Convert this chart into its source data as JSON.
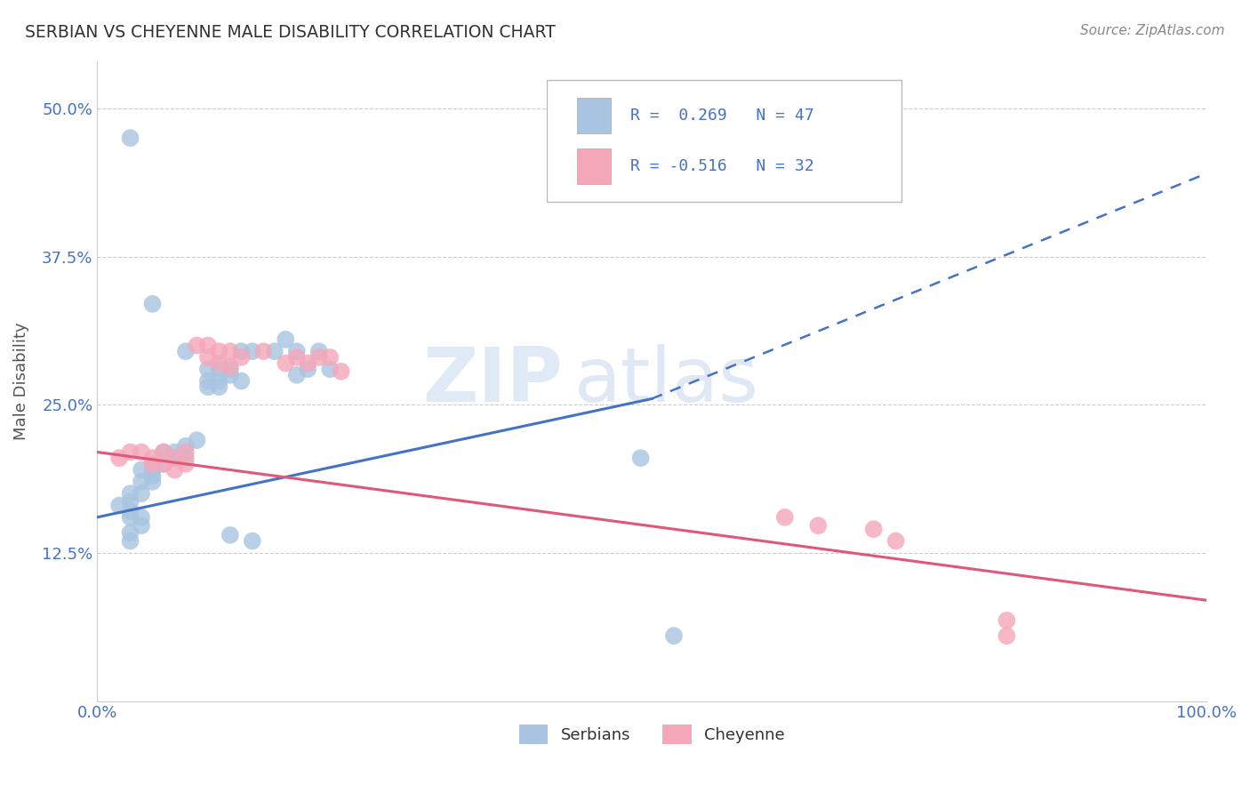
{
  "title": "SERBIAN VS CHEYENNE MALE DISABILITY CORRELATION CHART",
  "source": "Source: ZipAtlas.com",
  "xlabel": "",
  "ylabel": "Male Disability",
  "xlim": [
    0.0,
    1.0
  ],
  "ylim": [
    0.0,
    0.54
  ],
  "yticks": [
    0.0,
    0.125,
    0.25,
    0.375,
    0.5
  ],
  "ytick_labels": [
    "",
    "12.5%",
    "25.0%",
    "37.5%",
    "50.0%"
  ],
  "xtick_labels": [
    "0.0%",
    "100.0%"
  ],
  "watermark_zip": "ZIP",
  "watermark_atlas": "atlas",
  "legend_r1": "R =  0.269   N = 47",
  "legend_r2": "R = -0.516   N = 32",
  "serbian_color": "#a8c4e0",
  "cheyenne_color": "#f4a7b9",
  "serbian_line_color": "#4472c4",
  "cheyenne_line_color": "#e05878",
  "trend_line_serbian_solid": {
    "x0": 0.0,
    "y0": 0.155,
    "x1": 0.5,
    "y1": 0.255
  },
  "trend_line_serbian_dashed": {
    "x0": 0.5,
    "y0": 0.255,
    "x1": 1.0,
    "y1": 0.445
  },
  "trend_line_cheyenne": {
    "x0": 0.0,
    "y0": 0.21,
    "x1": 1.0,
    "y1": 0.085
  },
  "serbian_scatter": [
    [
      0.03,
      0.475
    ],
    [
      0.05,
      0.335
    ],
    [
      0.08,
      0.295
    ],
    [
      0.13,
      0.295
    ],
    [
      0.14,
      0.295
    ],
    [
      0.16,
      0.295
    ],
    [
      0.17,
      0.305
    ],
    [
      0.18,
      0.295
    ],
    [
      0.2,
      0.295
    ],
    [
      0.19,
      0.28
    ],
    [
      0.21,
      0.28
    ],
    [
      0.18,
      0.275
    ],
    [
      0.12,
      0.275
    ],
    [
      0.12,
      0.28
    ],
    [
      0.13,
      0.27
    ],
    [
      0.1,
      0.27
    ],
    [
      0.1,
      0.265
    ],
    [
      0.1,
      0.28
    ],
    [
      0.11,
      0.28
    ],
    [
      0.11,
      0.27
    ],
    [
      0.11,
      0.265
    ],
    [
      0.09,
      0.22
    ],
    [
      0.08,
      0.215
    ],
    [
      0.08,
      0.205
    ],
    [
      0.07,
      0.21
    ],
    [
      0.07,
      0.205
    ],
    [
      0.06,
      0.21
    ],
    [
      0.06,
      0.2
    ],
    [
      0.05,
      0.195
    ],
    [
      0.05,
      0.19
    ],
    [
      0.04,
      0.195
    ],
    [
      0.05,
      0.185
    ],
    [
      0.04,
      0.185
    ],
    [
      0.04,
      0.175
    ],
    [
      0.03,
      0.175
    ],
    [
      0.03,
      0.168
    ],
    [
      0.02,
      0.165
    ],
    [
      0.03,
      0.16
    ],
    [
      0.03,
      0.155
    ],
    [
      0.04,
      0.155
    ],
    [
      0.04,
      0.148
    ],
    [
      0.03,
      0.142
    ],
    [
      0.03,
      0.135
    ],
    [
      0.49,
      0.205
    ],
    [
      0.12,
      0.14
    ],
    [
      0.14,
      0.135
    ],
    [
      0.52,
      0.055
    ]
  ],
  "cheyenne_scatter": [
    [
      0.03,
      0.21
    ],
    [
      0.04,
      0.21
    ],
    [
      0.05,
      0.205
    ],
    [
      0.05,
      0.2
    ],
    [
      0.06,
      0.21
    ],
    [
      0.06,
      0.2
    ],
    [
      0.07,
      0.205
    ],
    [
      0.07,
      0.195
    ],
    [
      0.08,
      0.21
    ],
    [
      0.08,
      0.2
    ],
    [
      0.09,
      0.3
    ],
    [
      0.1,
      0.3
    ],
    [
      0.1,
      0.29
    ],
    [
      0.11,
      0.295
    ],
    [
      0.11,
      0.285
    ],
    [
      0.12,
      0.295
    ],
    [
      0.12,
      0.282
    ],
    [
      0.13,
      0.29
    ],
    [
      0.15,
      0.295
    ],
    [
      0.17,
      0.285
    ],
    [
      0.18,
      0.29
    ],
    [
      0.19,
      0.285
    ],
    [
      0.2,
      0.29
    ],
    [
      0.21,
      0.29
    ],
    [
      0.22,
      0.278
    ],
    [
      0.02,
      0.205
    ],
    [
      0.62,
      0.155
    ],
    [
      0.65,
      0.148
    ],
    [
      0.7,
      0.145
    ],
    [
      0.72,
      0.135
    ],
    [
      0.82,
      0.068
    ],
    [
      0.82,
      0.055
    ]
  ],
  "background_color": "#ffffff",
  "grid_color": "#cccccc",
  "title_color": "#333333",
  "axis_label_color": "#555555",
  "tick_label_color": "#4472c4",
  "source_color": "#888888"
}
